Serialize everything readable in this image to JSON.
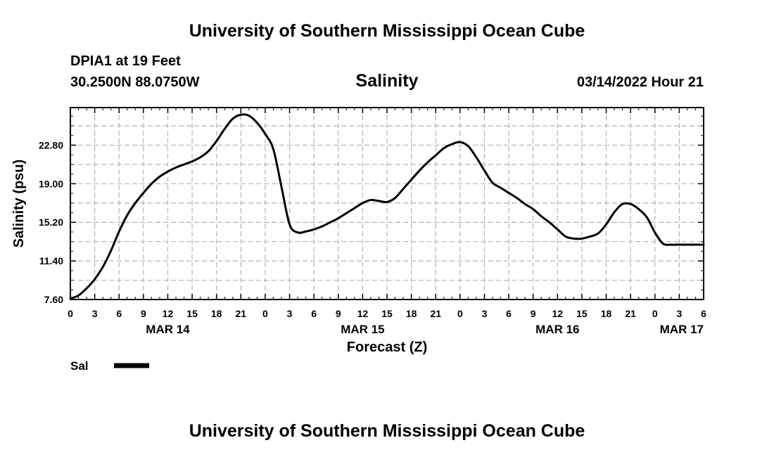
{
  "header": {
    "title": "University of Southern Mississippi Ocean Cube",
    "station": "DPIA1 at 19 Feet",
    "coords": "30.2500N  88.0750W",
    "parameter": "Salinity",
    "datetime": "03/14/2022 Hour 21"
  },
  "footer": {
    "title": "University of Southern Mississippi Ocean Cube"
  },
  "colors": {
    "line": "#000000",
    "grid": "#b4b4b4",
    "background": "#ffffff"
  },
  "chart_data": {
    "type": "line",
    "title": "Salinity",
    "xlabel": "Forecast (Z)",
    "ylabel": "Salinity (psu)",
    "xlim": [
      0,
      78
    ],
    "ylim": [
      7.6,
      26.5
    ],
    "yticks": [
      "7.60",
      "11.40",
      "15.20",
      "19.00",
      "22.80"
    ],
    "ytick_values": [
      7.6,
      11.4,
      15.2,
      19.0,
      22.8
    ],
    "xticks": [
      "0",
      "3",
      "6",
      "9",
      "12",
      "15",
      "18",
      "21",
      "0",
      "3",
      "6",
      "9",
      "12",
      "15",
      "18",
      "21",
      "0",
      "3",
      "6",
      "9",
      "12",
      "15",
      "18",
      "21",
      "0",
      "3",
      "6"
    ],
    "day_labels": [
      {
        "label": "MAR 14",
        "hour": 12
      },
      {
        "label": "MAR 15",
        "hour": 36
      },
      {
        "label": "MAR 16",
        "hour": 60
      },
      {
        "label": "MAR 17",
        "hour": 78
      }
    ],
    "grid": true,
    "series": [
      {
        "name": "Sal",
        "x": [
          0,
          1,
          2,
          3,
          4,
          5,
          6,
          7,
          8,
          9,
          10,
          11,
          12,
          13,
          14,
          15,
          16,
          17,
          18,
          19,
          20,
          21,
          22,
          23,
          24,
          25,
          26,
          27,
          28,
          29,
          30,
          31,
          32,
          33,
          34,
          35,
          36,
          37,
          38,
          39,
          40,
          41,
          42,
          43,
          44,
          45,
          46,
          47,
          48,
          49,
          50,
          51,
          52,
          53,
          54,
          55,
          56,
          57,
          58,
          59,
          60,
          61,
          62,
          63,
          64,
          65,
          66,
          67,
          68,
          69,
          70,
          71,
          72,
          73,
          74,
          75,
          76,
          77,
          78
        ],
        "values": [
          7.7,
          8.0,
          8.7,
          9.6,
          10.8,
          12.4,
          14.3,
          15.9,
          17.1,
          18.1,
          19.0,
          19.7,
          20.2,
          20.6,
          20.9,
          21.2,
          21.6,
          22.2,
          23.2,
          24.4,
          25.4,
          25.8,
          25.7,
          25.0,
          23.9,
          22.4,
          18.7,
          15.0,
          14.2,
          14.3,
          14.5,
          14.8,
          15.2,
          15.6,
          16.1,
          16.6,
          17.1,
          17.4,
          17.3,
          17.2,
          17.6,
          18.5,
          19.4,
          20.3,
          21.1,
          21.8,
          22.5,
          22.9,
          23.1,
          22.7,
          21.6,
          20.3,
          19.1,
          18.6,
          18.1,
          17.6,
          17.0,
          16.5,
          15.8,
          15.2,
          14.5,
          13.8,
          13.6,
          13.6,
          13.8,
          14.1,
          15.0,
          16.2,
          17.0,
          17.0,
          16.5,
          15.7,
          14.2,
          13.1,
          13.0,
          13.0,
          13.0,
          13.0,
          13.0
        ]
      }
    ],
    "legend": {
      "label": "Sal",
      "position": "bottom-left"
    }
  }
}
